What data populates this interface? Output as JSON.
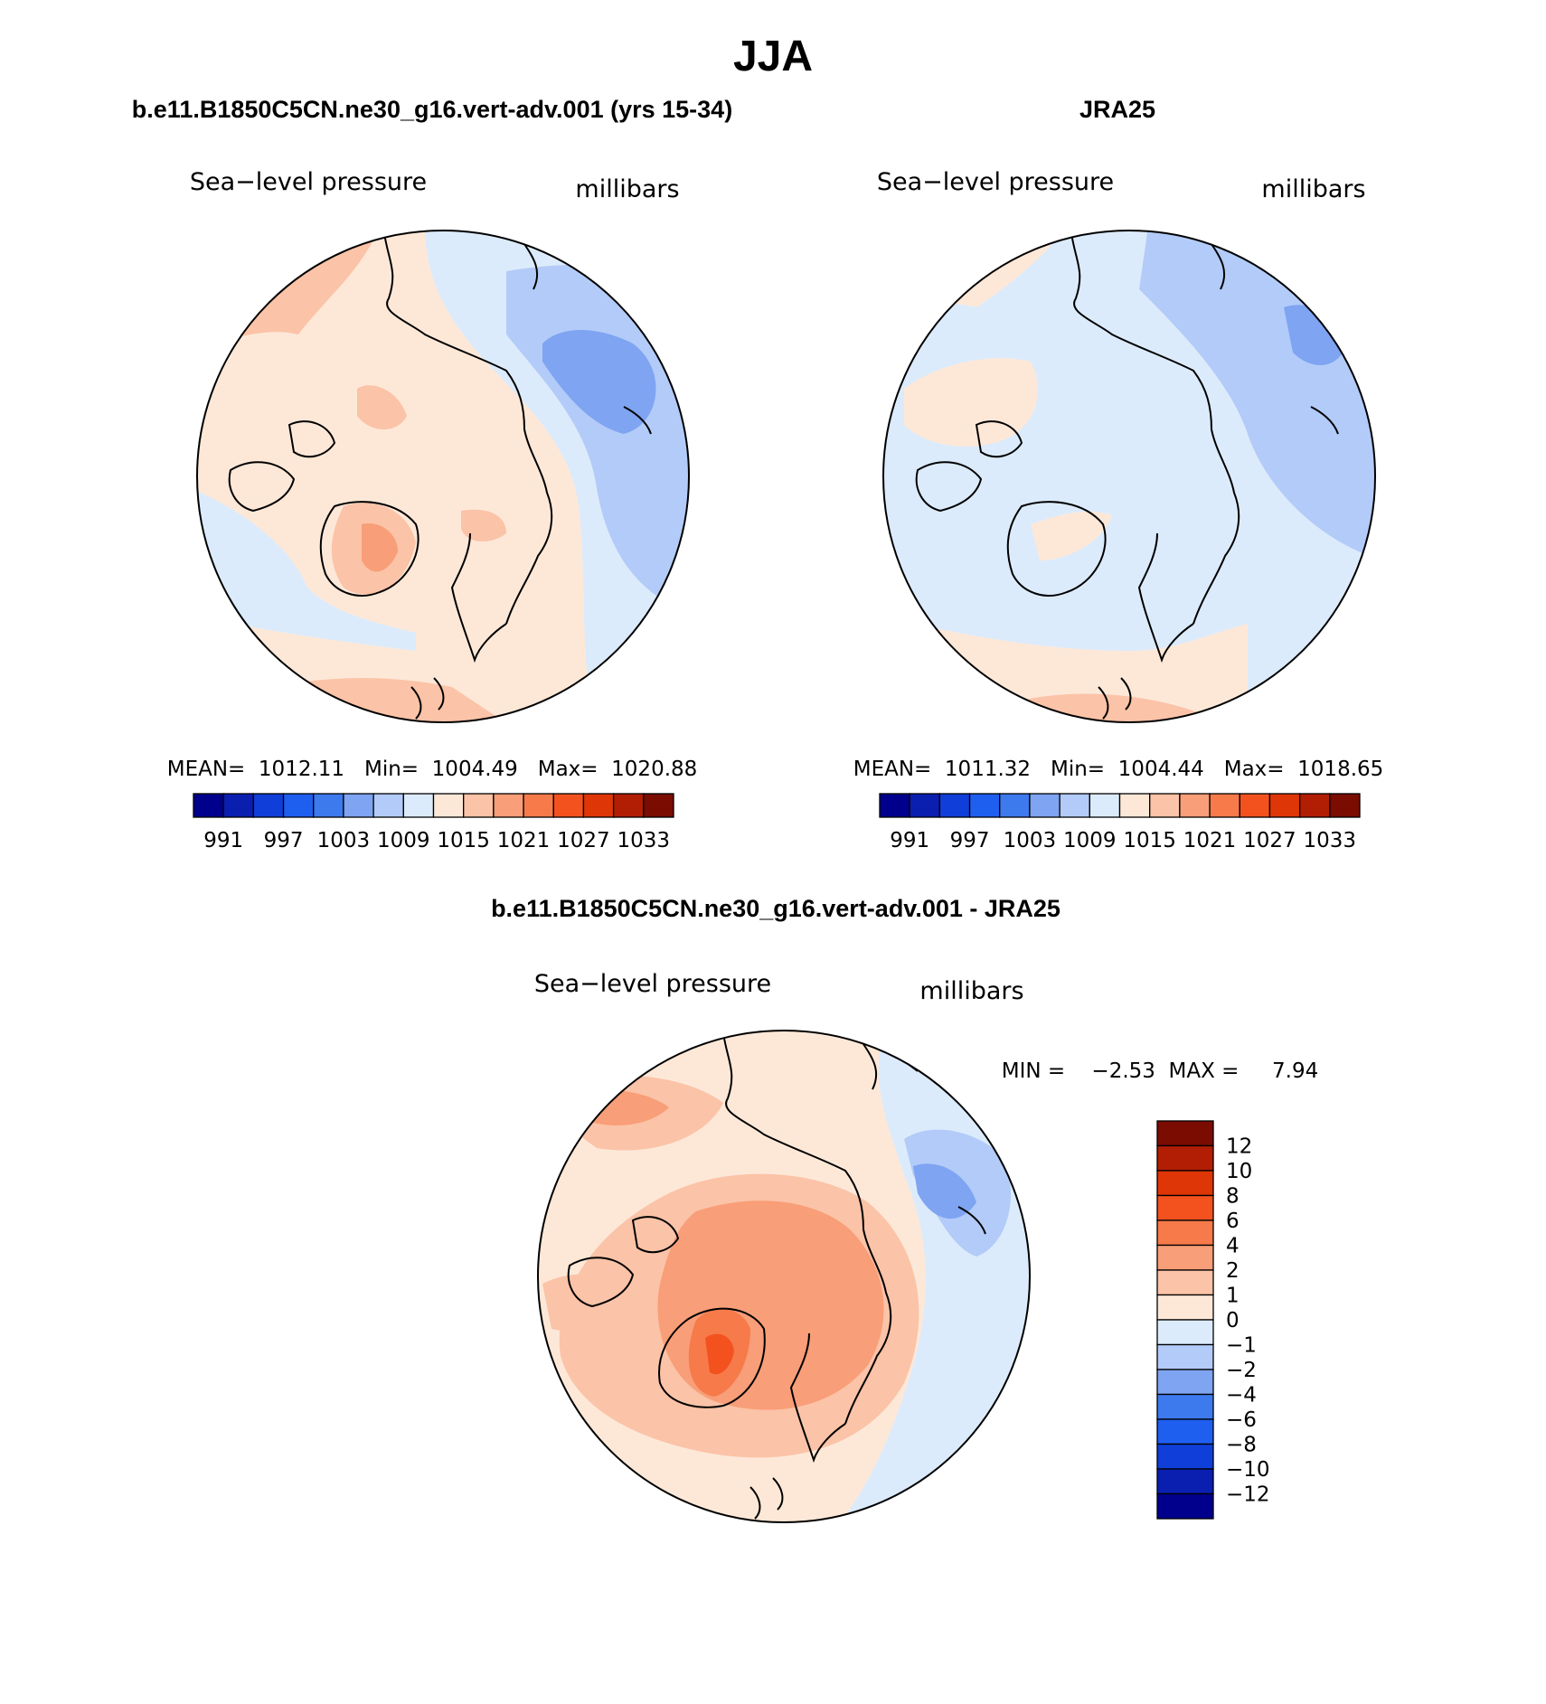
{
  "figure": {
    "season_title": "JJA"
  },
  "panels": [
    {
      "id": "model",
      "heading": "b.e11.B1850C5CN.ne30_g16.vert-adv.001 (yrs 15-34)",
      "field_label": "Sea−level pressure",
      "units_label": "millibars",
      "stats_text": "MEAN=  1012.11   Min=  1004.49   Max=  1020.88"
    },
    {
      "id": "obs",
      "heading": "JRA25",
      "field_label": "Sea−level pressure",
      "units_label": "millibars",
      "stats_text": "MEAN=  1011.32   Min=  1004.44   Max=  1018.65"
    },
    {
      "id": "diff",
      "heading": "b.e11.B1850C5CN.ne30_g16.vert-adv.001 - JRA25",
      "field_label": "Sea−level pressure",
      "units_label": "millibars",
      "stats_text": "MIN =    −2.53  MAX =     7.94"
    }
  ],
  "chart_data": [
    {
      "type": "heatmap",
      "projection": "north-polar-stereographic",
      "field": "sea-level pressure",
      "panel": "model",
      "mean": 1012.11,
      "min": 1004.49,
      "max": 1020.88,
      "colorbar": {
        "orientation": "horizontal",
        "tick_labels": [
          "991",
          "997",
          "1003",
          "1009",
          "1015",
          "1021",
          "1027",
          "1033"
        ],
        "colors": [
          "#00008c",
          "#0a1fb0",
          "#0f3fd8",
          "#1f5ff0",
          "#3d7aee",
          "#7ea4f2",
          "#b3cbf8",
          "#dcebfb",
          "#fde8d8",
          "#fbc3a7",
          "#f89e78",
          "#f67a4a",
          "#f3521f",
          "#df3607",
          "#b21e04",
          "#7a0c02"
        ]
      },
      "regions": [
        {
          "value_range": [
            1009,
            1012
          ],
          "color": "#dcebfb"
        },
        {
          "value_range": [
            1012,
            1015
          ],
          "color": "#fde8d8"
        },
        {
          "value_range": [
            1015,
            1018
          ],
          "color": "#fbc3a7"
        },
        {
          "value_range": [
            1018,
            1021
          ],
          "color": "#f89e78"
        },
        {
          "value_range": [
            1006,
            1009
          ],
          "color": "#b3cbf8"
        },
        {
          "value_range": [
            1003,
            1006
          ],
          "color": "#7ea4f2"
        }
      ]
    },
    {
      "type": "heatmap",
      "projection": "north-polar-stereographic",
      "field": "sea-level pressure",
      "panel": "obs",
      "mean": 1011.32,
      "min": 1004.44,
      "max": 1018.65,
      "colorbar": {
        "orientation": "horizontal",
        "tick_labels": [
          "991",
          "997",
          "1003",
          "1009",
          "1015",
          "1021",
          "1027",
          "1033"
        ],
        "colors": [
          "#00008c",
          "#0a1fb0",
          "#0f3fd8",
          "#1f5ff0",
          "#3d7aee",
          "#7ea4f2",
          "#b3cbf8",
          "#dcebfb",
          "#fde8d8",
          "#fbc3a7",
          "#f89e78",
          "#f67a4a",
          "#f3521f",
          "#df3607",
          "#b21e04",
          "#7a0c02"
        ]
      },
      "regions": [
        {
          "value_range": [
            1009,
            1012
          ],
          "color": "#dcebfb"
        },
        {
          "value_range": [
            1012,
            1015
          ],
          "color": "#fde8d8"
        },
        {
          "value_range": [
            1015,
            1018
          ],
          "color": "#fbc3a7"
        },
        {
          "value_range": [
            1006,
            1009
          ],
          "color": "#b3cbf8"
        },
        {
          "value_range": [
            1003,
            1006
          ],
          "color": "#7ea4f2"
        }
      ]
    },
    {
      "type": "heatmap",
      "projection": "north-polar-stereographic",
      "field": "sea-level pressure difference",
      "panel": "diff",
      "min": -2.53,
      "max": 7.94,
      "colorbar": {
        "orientation": "vertical",
        "levels_top_to_bottom": [
          "12",
          "10",
          "8",
          "6",
          "4",
          "2",
          "1",
          "0",
          "−1",
          "−2",
          "−4",
          "−6",
          "−8",
          "−10",
          "−12"
        ],
        "colors_top_to_bottom": [
          "#7a0c02",
          "#b21e04",
          "#df3607",
          "#f3521f",
          "#f67a4a",
          "#f89e78",
          "#fbc3a7",
          "#fde8d8",
          "#dcebfb",
          "#b3cbf8",
          "#7ea4f2",
          "#3d7aee",
          "#1f5ff0",
          "#0f3fd8",
          "#0a1fb0",
          "#00008c"
        ]
      },
      "regions": [
        {
          "value_range": [
            0,
            1
          ],
          "color": "#fde8d8"
        },
        {
          "value_range": [
            1,
            2
          ],
          "color": "#fbc3a7"
        },
        {
          "value_range": [
            2,
            4
          ],
          "color": "#f89e78"
        },
        {
          "value_range": [
            4,
            6
          ],
          "color": "#f67a4a"
        },
        {
          "value_range": [
            6,
            8
          ],
          "color": "#f3521f"
        },
        {
          "value_range": [
            -1,
            0
          ],
          "color": "#dcebfb"
        },
        {
          "value_range": [
            -2,
            -1
          ],
          "color": "#b3cbf8"
        },
        {
          "value_range": [
            -4,
            -2
          ],
          "color": "#7ea4f2"
        }
      ]
    }
  ]
}
